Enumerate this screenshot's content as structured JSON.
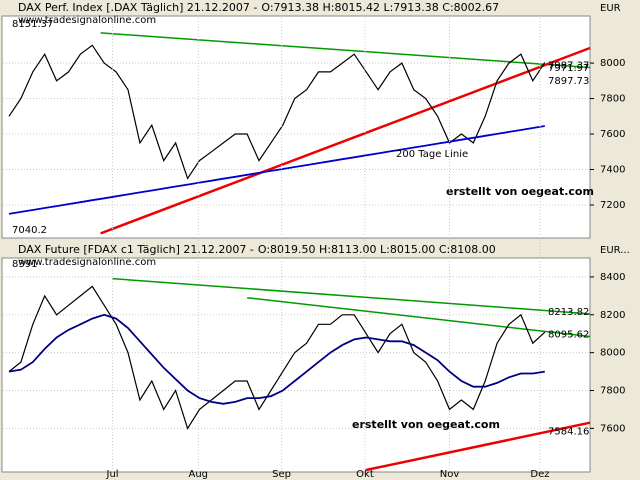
{
  "chart_data": [
    {
      "type": "line",
      "title": "DAX Perf. Index [.DAX  Täglich] 21.12.2007 -",
      "title_values": "O:7913.38 H:8015.42 L:7913.38 C:8002.67",
      "source": "www.tradesignalonline.com",
      "unit": "EUR",
      "ylim": [
        7014,
        8254
      ],
      "yticks": [
        7200,
        7400,
        7600,
        7800,
        8000
      ],
      "xlim": [
        -0.5,
        48.8
      ],
      "series": [
        {
          "color": "#000000",
          "values": [
            7700,
            7800,
            7950,
            8050,
            7900,
            7950,
            8050,
            8100,
            8000,
            7950,
            7850,
            7550,
            7650,
            7450,
            7550,
            7350,
            7450,
            7500,
            7550,
            7600,
            7600,
            7450,
            7550,
            7650,
            7800,
            7850,
            7950,
            7950,
            8000,
            8050,
            7950,
            7850,
            7950,
            8000,
            7850,
            7800,
            7700,
            7550,
            7600,
            7550,
            7700,
            7900,
            8000,
            8050,
            7900,
            8002.67
          ]
        },
        {
          "color": "#0000cc",
          "values": [
            7150,
            7161,
            7172,
            7183,
            7194,
            7205,
            7216,
            7227,
            7238,
            7249,
            7260,
            7271,
            7282,
            7293,
            7304,
            7315,
            7326,
            7337,
            7348,
            7359,
            7370,
            7381,
            7392,
            7403,
            7414,
            7425,
            7436,
            7447,
            7458,
            7469,
            7480,
            7491,
            7502,
            7513,
            7524,
            7535,
            7546,
            7557,
            7568,
            7579,
            7590,
            7601,
            7612,
            7623,
            7634,
            7645
          ]
        }
      ],
      "trendlines": [
        {
          "color": "#009900",
          "from": [
            7.7,
            8170
          ],
          "to": [
            48.8,
            7975
          ]
        },
        {
          "color": "#ee0000",
          "from": [
            7.7,
            7040
          ],
          "to": [
            48.8,
            8085
          ]
        }
      ],
      "annotations": [
        {
          "value": 7987.37,
          "label": "7987.37"
        },
        {
          "value": 7971.97,
          "label": "7971.97"
        },
        {
          "value": 7897.73,
          "label": "7897.73"
        }
      ],
      "high_label": {
        "value": 8151.37,
        "label": "8151.37"
      },
      "low_label": {
        "value": 7040.2,
        "label": "7040.2"
      },
      "ma_label": "200 Tage Linie",
      "credit": "erstellt von oegeat.com"
    },
    {
      "type": "line",
      "title": "DAX Future [FDAX c1  Täglich] 21.12.2007 -",
      "title_values": "O:8019.50 H:8113.00 L:8015.00 C:8108.00",
      "source": "www.tradesignalonline.com",
      "unit": "EUR...",
      "ylim": [
        7380,
        8500
      ],
      "yticks": [
        7600,
        7800,
        8000,
        8200,
        8400
      ],
      "xlim": [
        -0.5,
        48.8
      ],
      "xticks": [
        {
          "value": 8.7,
          "label": "Jul"
        },
        {
          "value": 15.9,
          "label": "Aug"
        },
        {
          "value": 22.9,
          "label": "Sep"
        },
        {
          "value": 29.9,
          "label": "Okt"
        },
        {
          "value": 37.0,
          "label": "Nov"
        },
        {
          "value": 44.6,
          "label": "Dez"
        }
      ],
      "series": [
        {
          "color": "#000000",
          "values": [
            7900,
            7950,
            8150,
            8300,
            8200,
            8250,
            8300,
            8350,
            8250,
            8150,
            8000,
            7750,
            7850,
            7700,
            7800,
            7600,
            7700,
            7750,
            7800,
            7850,
            7850,
            7700,
            7800,
            7900,
            8000,
            8050,
            8150,
            8150,
            8200,
            8200,
            8100,
            8000,
            8100,
            8150,
            8000,
            7950,
            7850,
            7700,
            7750,
            7700,
            7850,
            8050,
            8150,
            8200,
            8050,
            8108
          ]
        },
        {
          "color": "#000080",
          "values": [
            7900,
            7910,
            7950,
            8020,
            8080,
            8120,
            8150,
            8180,
            8200,
            8180,
            8130,
            8060,
            7990,
            7920,
            7860,
            7800,
            7760,
            7740,
            7730,
            7740,
            7760,
            7760,
            7770,
            7800,
            7850,
            7900,
            7950,
            8000,
            8040,
            8070,
            8080,
            8070,
            8060,
            8060,
            8040,
            8000,
            7960,
            7900,
            7850,
            7820,
            7820,
            7840,
            7870,
            7890,
            7890,
            7900
          ]
        }
      ],
      "trendlines": [
        {
          "color": "#009900",
          "from": [
            8.7,
            8391
          ],
          "to": [
            48.8,
            8205
          ]
        },
        {
          "color": "#009900",
          "from": [
            20,
            8290
          ],
          "to": [
            48.8,
            8085
          ]
        },
        {
          "color": "#ee0000",
          "from": [
            30,
            7380
          ],
          "to": [
            48.8,
            7630
          ]
        }
      ],
      "annotations": [
        {
          "value": 8213.82,
          "label": "8213.82"
        },
        {
          "value": 8095.62,
          "label": "8095.62"
        },
        {
          "value": 7584.16,
          "label": "7584.16"
        }
      ],
      "high_label": {
        "value": 8391,
        "label": "8391"
      },
      "credit": "erstellt von oegeat.com"
    }
  ]
}
